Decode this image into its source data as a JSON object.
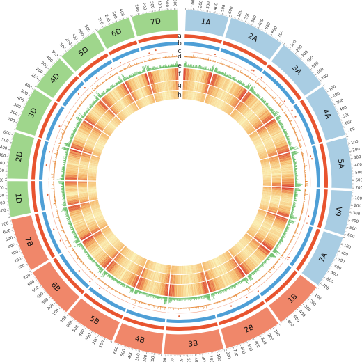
{
  "genome": {
    "tick_step": 100,
    "chromosomes": [
      {
        "name": "1A",
        "length": 600,
        "group": "A"
      },
      {
        "name": "2A",
        "length": 780,
        "group": "A"
      },
      {
        "name": "3A",
        "length": 750,
        "group": "A"
      },
      {
        "name": "4A",
        "length": 740,
        "group": "A"
      },
      {
        "name": "5A",
        "length": 710,
        "group": "A"
      },
      {
        "name": "6A",
        "length": 620,
        "group": "A"
      },
      {
        "name": "7A",
        "length": 740,
        "group": "A"
      },
      {
        "name": "1B",
        "length": 690,
        "group": "B"
      },
      {
        "name": "2B",
        "length": 800,
        "group": "B"
      },
      {
        "name": "3B",
        "length": 830,
        "group": "B"
      },
      {
        "name": "4B",
        "length": 670,
        "group": "B"
      },
      {
        "name": "5B",
        "length": 710,
        "group": "B"
      },
      {
        "name": "6B",
        "length": 720,
        "group": "B"
      },
      {
        "name": "7B",
        "length": 750,
        "group": "B"
      },
      {
        "name": "1D",
        "length": 500,
        "group": "D"
      },
      {
        "name": "2D",
        "length": 650,
        "group": "D"
      },
      {
        "name": "3D",
        "length": 620,
        "group": "D"
      },
      {
        "name": "4D",
        "length": 510,
        "group": "D"
      },
      {
        "name": "5D",
        "length": 570,
        "group": "D"
      },
      {
        "name": "6D",
        "length": 480,
        "group": "D"
      },
      {
        "name": "7D",
        "length": 640,
        "group": "D"
      }
    ]
  },
  "tracks": [
    {
      "letter": "a",
      "type": "band",
      "color": "#e8542f"
    },
    {
      "letter": "b",
      "type": "band",
      "color": "#4e9fd6"
    },
    {
      "letter": "c",
      "type": "scatter",
      "color": "#e0663d"
    },
    {
      "letter": "d",
      "type": "histogram",
      "color": "#e6832e"
    },
    {
      "letter": "e",
      "type": "histogram",
      "color": "#5cb85a"
    },
    {
      "letter": "f",
      "type": "heatmap"
    },
    {
      "letter": "g",
      "type": "heatmap"
    },
    {
      "letter": "h",
      "type": "heatmap"
    }
  ],
  "colors": {
    "group_A": "#a9cde3",
    "group_B": "#f0876a",
    "group_D": "#9fd68c",
    "heat_low": "#fbf3b8",
    "heat_mid": "#f5b463",
    "heat_high": "#d8342a"
  }
}
